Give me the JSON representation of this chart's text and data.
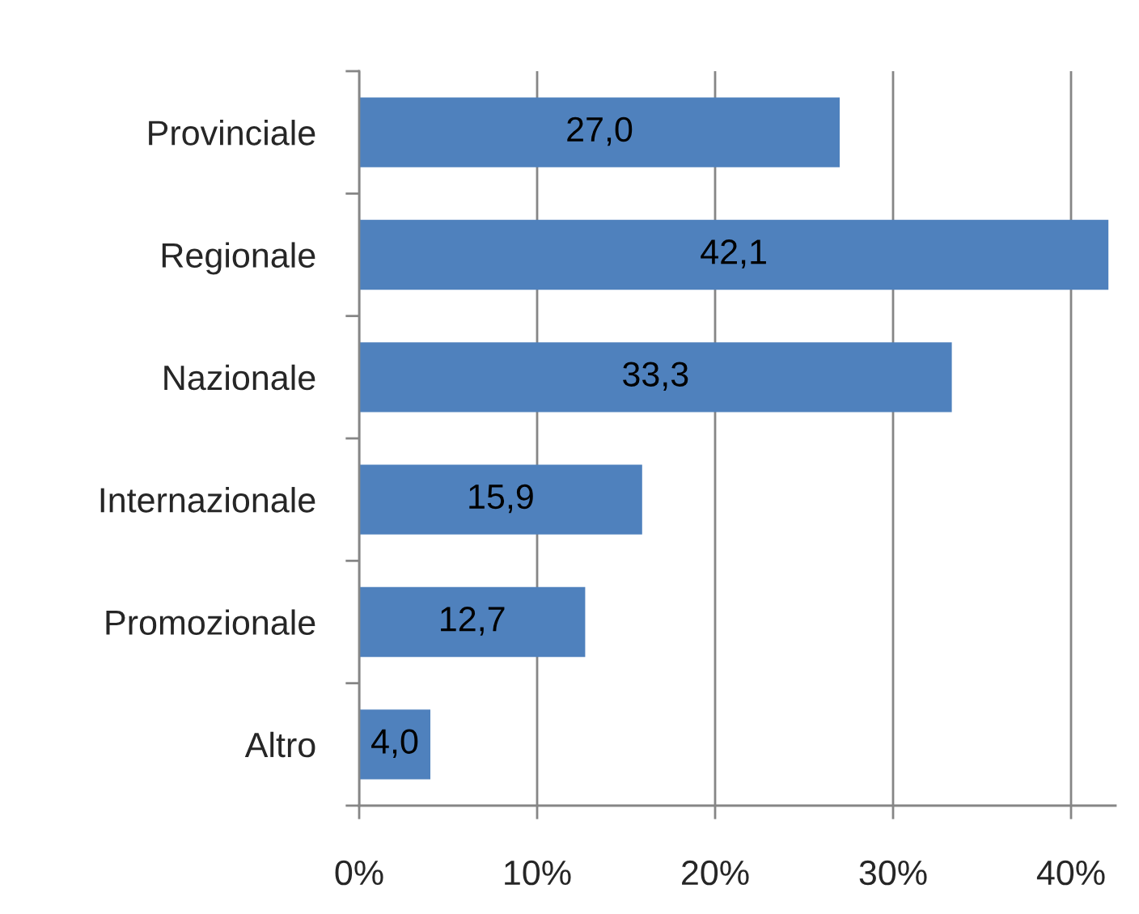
{
  "chart_data": {
    "type": "bar",
    "orientation": "horizontal",
    "categories": [
      "Provinciale",
      "Regionale",
      "Nazionale",
      "Internazionale",
      "Promozionale",
      "Altro"
    ],
    "values": [
      27.0,
      42.1,
      33.3,
      15.9,
      12.7,
      4.0
    ],
    "value_labels": [
      "27,0",
      "42,1",
      "33,3",
      "15,9",
      "12,7",
      "4,0"
    ],
    "color": "#4f81bd",
    "xlim": [
      0,
      42.5
    ],
    "xticks": [
      {
        "value": 0,
        "label": "0%"
      },
      {
        "value": 10,
        "label": "10%"
      },
      {
        "value": 20,
        "label": "20%"
      },
      {
        "value": 30,
        "label": "30%"
      },
      {
        "value": 40,
        "label": "40%"
      }
    ],
    "grid": "x"
  }
}
